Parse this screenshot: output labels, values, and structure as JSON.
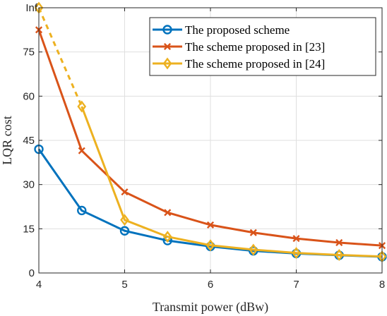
{
  "chart_data": {
    "type": "line",
    "xlabel": "Transmit power (dBw)",
    "ylabel": "LQR cost",
    "xlim": [
      4,
      8
    ],
    "ylim": [
      0,
      90
    ],
    "xticks": [
      4,
      5,
      6,
      7,
      8
    ],
    "yticks": [
      0,
      15,
      30,
      45,
      60,
      75
    ],
    "ytick_top_label": "Inf",
    "grid": true,
    "legend_position": "top-right",
    "x": [
      4,
      4.5,
      5,
      5.5,
      6,
      6.5,
      7,
      7.5,
      8
    ],
    "series": [
      {
        "name": "The proposed scheme",
        "color": "#0072BD",
        "marker": "circle",
        "values": [
          42,
          21.2,
          14.3,
          11,
          9,
          7.5,
          6.6,
          6,
          5.5
        ]
      },
      {
        "name": "The scheme proposed in [23]",
        "color": "#D95319",
        "marker": "x",
        "values": [
          82.5,
          41.5,
          27.5,
          20.5,
          16.3,
          13.7,
          11.7,
          10.3,
          9.3
        ]
      },
      {
        "name": "The scheme proposed in [24]",
        "color": "#EDB120",
        "marker": "diamond",
        "values": [
          90,
          56.5,
          18,
          12.3,
          9.4,
          7.9,
          6.8,
          6.1,
          5.6
        ],
        "dashed_segment_to_index": 1
      }
    ]
  }
}
